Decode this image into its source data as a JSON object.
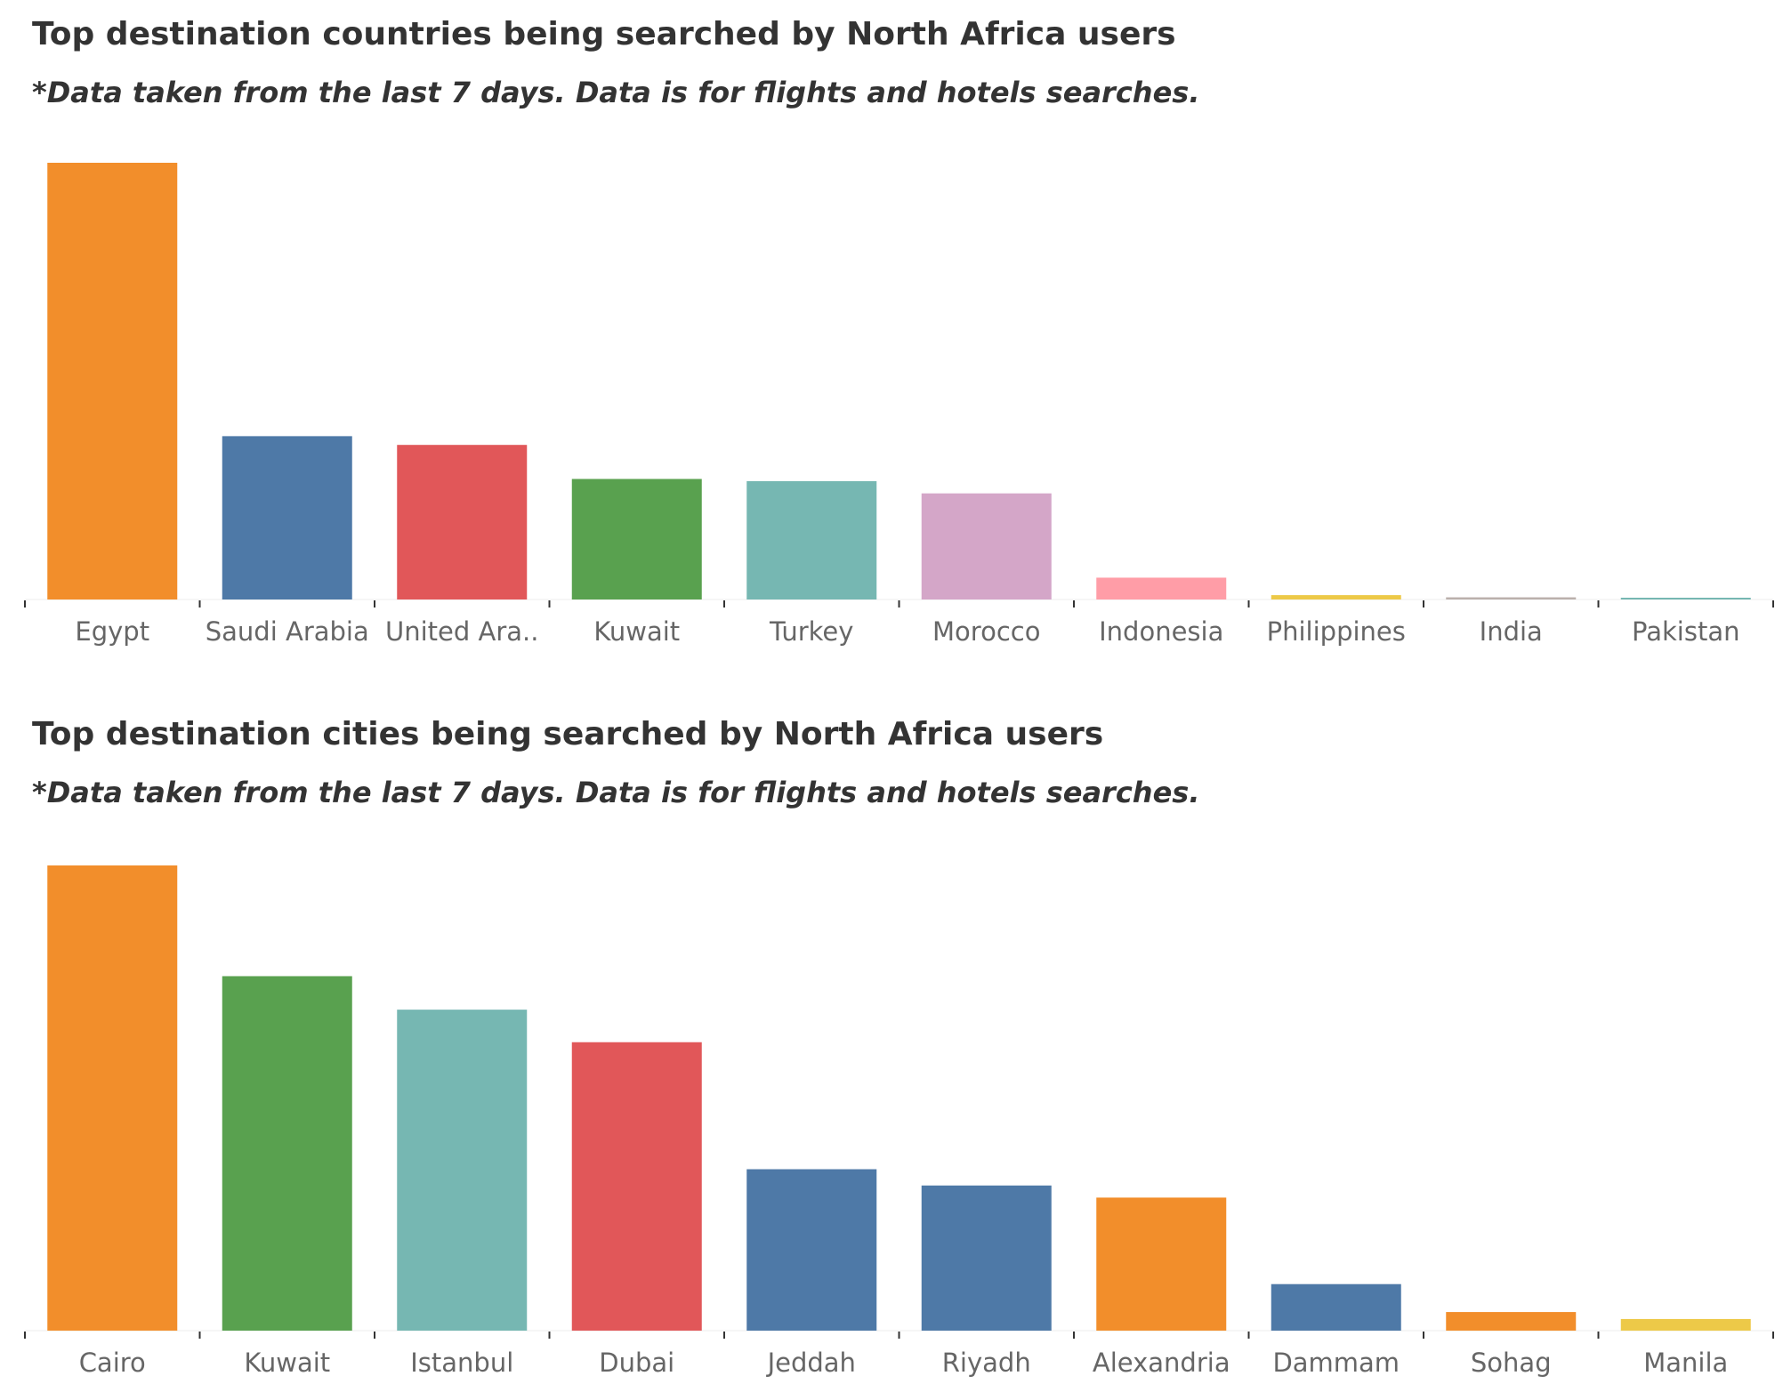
{
  "chart_data": [
    {
      "type": "bar",
      "title": "Top destination countries being searched by North Africa users",
      "subtitle": "*Data taken from the last 7 days. Data is for flights and hotels searches.",
      "categories": [
        "Egypt",
        "Saudi Arabia",
        "United Ara..",
        "Kuwait",
        "Turkey",
        "Morocco",
        "Indonesia",
        "Philippines",
        "India",
        "Pakistan"
      ],
      "values": [
        100,
        37.4,
        35.4,
        27.6,
        27.1,
        24.3,
        5.0,
        1.0,
        0.5,
        0.2
      ],
      "colors": [
        "#F28E2B",
        "#4E79A7",
        "#E15759",
        "#59A14F",
        "#76B7B2",
        "#D4A6C8",
        "#FF9DA7",
        "#EDC948",
        "#BAB0AC",
        "#76B7B2"
      ],
      "ylim": [
        0,
        100
      ],
      "grid": false,
      "legend": "none"
    },
    {
      "type": "bar",
      "title": "Top destination cities being searched by North Africa users",
      "subtitle": "*Data taken from the last 7 days. Data is for flights and hotels searches.",
      "categories": [
        "Cairo",
        "Kuwait",
        "Istanbul",
        "Dubai",
        "Jeddah",
        "Riyadh",
        "Alexandria",
        "Dammam",
        "Sohag",
        "Manila"
      ],
      "values": [
        100,
        76.2,
        69.0,
        62.0,
        34.7,
        31.2,
        28.6,
        10.0,
        4.0,
        2.5
      ],
      "colors": [
        "#F28E2B",
        "#59A14F",
        "#76B7B2",
        "#E15759",
        "#4E79A7",
        "#4E79A7",
        "#F28E2B",
        "#4E79A7",
        "#F28E2B",
        "#EDC948"
      ],
      "ylim": [
        0,
        100
      ],
      "grid": false,
      "legend": "none"
    }
  ]
}
